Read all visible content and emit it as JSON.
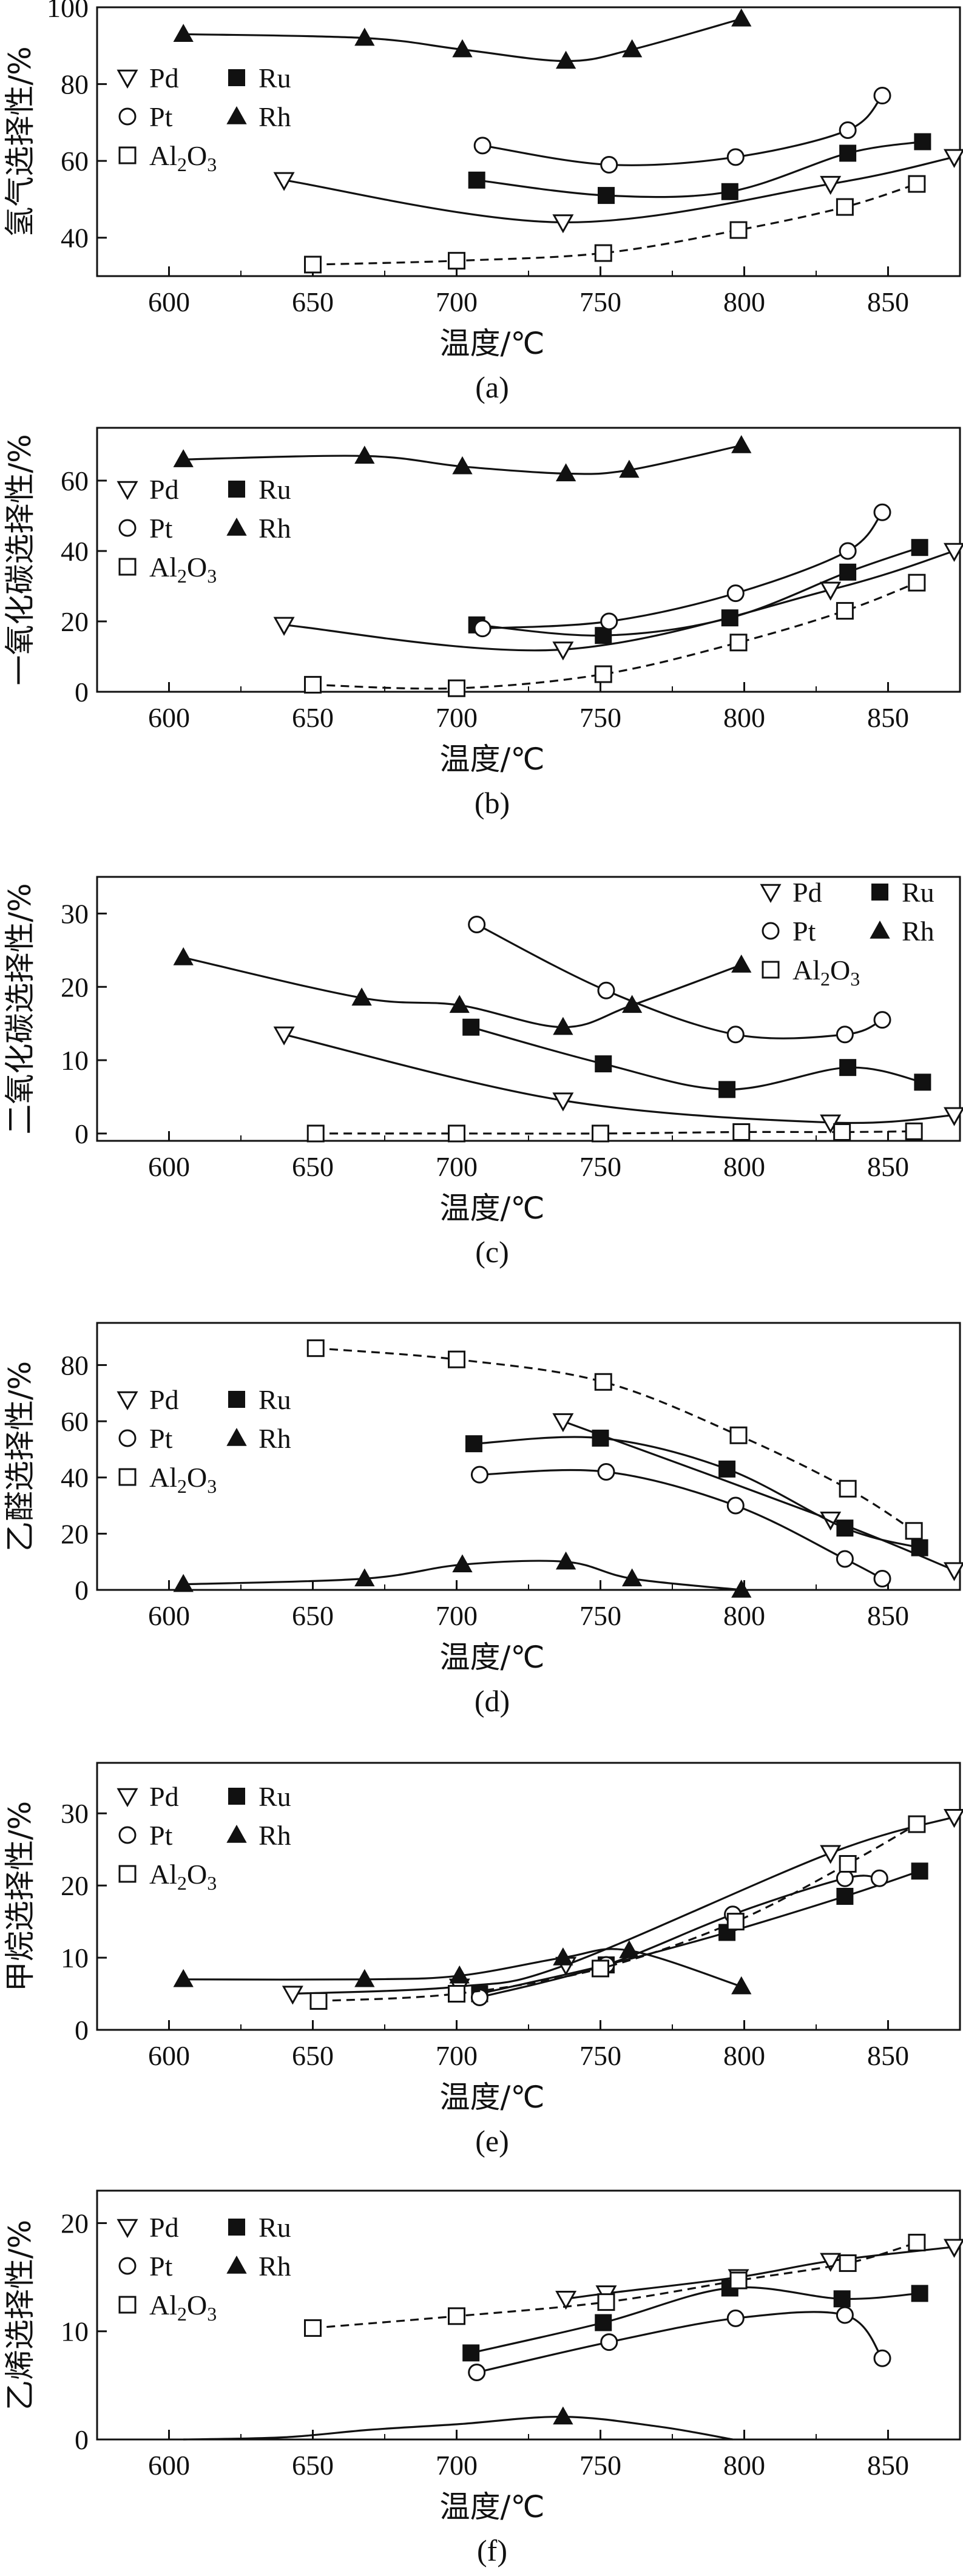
{
  "chart_data": [
    {
      "type": "line",
      "panel_label": "(a)",
      "xlabel": "温度/℃",
      "ylabel": "氢气选择性/%",
      "xlim": [
        575,
        875
      ],
      "ylim": [
        30,
        100
      ],
      "xticks": [
        600,
        650,
        700,
        750,
        800,
        850
      ],
      "yticks": [
        40,
        60,
        80,
        100
      ],
      "legend": {
        "position": "top-left",
        "columns": 2,
        "order": [
          "Pd",
          "Ru",
          "Pt",
          "Rh",
          "Al2O3"
        ]
      },
      "series": [
        {
          "name": "Pd",
          "display": "Pd",
          "marker": "triangle-down-open",
          "dashed": false,
          "x": [
            640,
            737,
            830,
            873
          ],
          "y": [
            55,
            44,
            54,
            61
          ]
        },
        {
          "name": "Ru",
          "display": "Ru",
          "marker": "square-filled",
          "dashed": false,
          "x": [
            707,
            752,
            795,
            836,
            862
          ],
          "y": [
            55,
            51,
            52,
            62,
            65
          ]
        },
        {
          "name": "Pt",
          "display": "Pt",
          "marker": "circle-open",
          "dashed": false,
          "x": [
            709,
            753,
            797,
            836,
            848
          ],
          "y": [
            64,
            59,
            61,
            68,
            77
          ]
        },
        {
          "name": "Rh",
          "display": "Rh",
          "marker": "triangle-up-filled",
          "dashed": false,
          "x": [
            605,
            668,
            702,
            738,
            761,
            799
          ],
          "y": [
            93,
            92,
            89,
            86,
            89,
            97
          ]
        },
        {
          "name": "Al2O3",
          "display": "Al",
          "display_sub": "2",
          "display_suffix": "O",
          "display_sub2": "3",
          "marker": "square-open",
          "dashed": true,
          "x": [
            650,
            700,
            751,
            798,
            835,
            860
          ],
          "y": [
            33,
            34,
            36,
            42,
            48,
            54
          ]
        }
      ]
    },
    {
      "type": "line",
      "panel_label": "(b)",
      "xlabel": "温度/℃",
      "ylabel": "一氧化碳选择性/%",
      "xlim": [
        575,
        875
      ],
      "ylim": [
        0,
        75
      ],
      "xticks": [
        600,
        650,
        700,
        750,
        800,
        850
      ],
      "yticks": [
        0,
        20,
        40,
        60
      ],
      "legend": {
        "position": "upper-left",
        "columns": 2,
        "order": [
          "Pd",
          "Ru",
          "Pt",
          "Rh",
          "Al2O3"
        ]
      },
      "series": [
        {
          "name": "Pd",
          "display": "Pd",
          "marker": "triangle-down-open",
          "dashed": false,
          "x": [
            640,
            737,
            830,
            873
          ],
          "y": [
            19,
            12,
            29,
            40
          ]
        },
        {
          "name": "Ru",
          "display": "Ru",
          "marker": "square-filled",
          "dashed": false,
          "x": [
            707,
            751,
            795,
            836,
            861
          ],
          "y": [
            19,
            16,
            21,
            34,
            41
          ]
        },
        {
          "name": "Pt",
          "display": "Pt",
          "marker": "circle-open",
          "dashed": false,
          "x": [
            709,
            753,
            797,
            836,
            848
          ],
          "y": [
            18,
            20,
            28,
            40,
            51
          ]
        },
        {
          "name": "Rh",
          "display": "Rh",
          "marker": "triangle-up-filled",
          "dashed": false,
          "x": [
            605,
            668,
            702,
            738,
            760,
            799
          ],
          "y": [
            66,
            67,
            64,
            62,
            63,
            70
          ]
        },
        {
          "name": "Al2O3",
          "display": "Al",
          "display_sub": "2",
          "display_suffix": "O",
          "display_sub2": "3",
          "marker": "square-open",
          "dashed": true,
          "x": [
            650,
            700,
            751,
            798,
            835,
            860
          ],
          "y": [
            2,
            1,
            5,
            14,
            23,
            31
          ]
        }
      ]
    },
    {
      "type": "line",
      "panel_label": "(c)",
      "xlabel": "温度/℃",
      "ylabel": "二氧化碳选择性/%",
      "xlim": [
        575,
        875
      ],
      "ylim": [
        -1,
        35
      ],
      "xticks": [
        600,
        650,
        700,
        750,
        800,
        850
      ],
      "yticks": [
        0,
        10,
        20,
        30
      ],
      "legend": {
        "position": "top-right",
        "columns": 2,
        "order": [
          "Pd",
          "Ru",
          "Pt",
          "Rh",
          "Al2O3"
        ]
      },
      "series": [
        {
          "name": "Pd",
          "display": "Pd",
          "marker": "triangle-down-open",
          "dashed": false,
          "x": [
            640,
            737,
            830,
            873
          ],
          "y": [
            13.5,
            4.5,
            1.5,
            2.5
          ]
        },
        {
          "name": "Ru",
          "display": "Ru",
          "marker": "square-filled",
          "dashed": false,
          "x": [
            705,
            751,
            794,
            836,
            862
          ],
          "y": [
            14.5,
            9.5,
            6,
            9,
            7
          ]
        },
        {
          "name": "Pt",
          "display": "Pt",
          "marker": "circle-open",
          "dashed": false,
          "x": [
            707,
            752,
            797,
            835,
            848
          ],
          "y": [
            28.5,
            19.5,
            13.5,
            13.5,
            15.5
          ]
        },
        {
          "name": "Rh",
          "display": "Rh",
          "marker": "triangle-up-filled",
          "dashed": false,
          "x": [
            605,
            667,
            701,
            737,
            761,
            799
          ],
          "y": [
            24,
            18.5,
            17.5,
            14.5,
            17.5,
            23
          ]
        },
        {
          "name": "Al2O3",
          "display": "Al",
          "display_sub": "2",
          "display_suffix": "O",
          "display_sub2": "3",
          "marker": "square-open",
          "dashed": true,
          "x": [
            651,
            700,
            750,
            799,
            834,
            859
          ],
          "y": [
            0,
            0,
            0,
            0.2,
            0.2,
            0.3
          ]
        }
      ]
    },
    {
      "type": "line",
      "panel_label": "(d)",
      "xlabel": "温度/℃",
      "ylabel": "乙醛选择性/%",
      "xlim": [
        575,
        875
      ],
      "ylim": [
        0,
        95
      ],
      "xticks": [
        600,
        650,
        700,
        750,
        800,
        850
      ],
      "yticks": [
        0,
        20,
        40,
        60,
        80
      ],
      "legend": {
        "position": "upper-left",
        "columns": 2,
        "order": [
          "Pd",
          "Ru",
          "Pt",
          "Rh",
          "Al2O3"
        ]
      },
      "series": [
        {
          "name": "Pd",
          "display": "Pd",
          "marker": "triangle-down-open",
          "dashed": false,
          "x": [
            737,
            830,
            873
          ],
          "y": [
            60,
            25,
            7
          ]
        },
        {
          "name": "Ru",
          "display": "Ru",
          "marker": "square-filled",
          "dashed": false,
          "x": [
            706,
            750,
            794,
            835,
            861
          ],
          "y": [
            52,
            54,
            43,
            22,
            15
          ]
        },
        {
          "name": "Pt",
          "display": "Pt",
          "marker": "circle-open",
          "dashed": false,
          "x": [
            708,
            752,
            797,
            835,
            848
          ],
          "y": [
            41,
            42,
            30,
            11,
            4
          ]
        },
        {
          "name": "Rh",
          "display": "Rh",
          "marker": "triangle-up-filled",
          "dashed": false,
          "x": [
            605,
            668,
            702,
            738,
            761,
            799
          ],
          "y": [
            2,
            4,
            9,
            10,
            4,
            0
          ]
        },
        {
          "name": "Al2O3",
          "display": "Al",
          "display_sub": "2",
          "display_suffix": "O",
          "display_sub2": "3",
          "marker": "square-open",
          "dashed": true,
          "x": [
            651,
            700,
            751,
            798,
            836,
            859
          ],
          "y": [
            86,
            82,
            74,
            55,
            36,
            21
          ]
        }
      ]
    },
    {
      "type": "line",
      "panel_label": "(e)",
      "xlabel": "温度/℃",
      "ylabel": "甲烷选择性/%",
      "xlim": [
        575,
        875
      ],
      "ylim": [
        0,
        37
      ],
      "xticks": [
        600,
        650,
        700,
        750,
        800,
        850
      ],
      "yticks": [
        0,
        10,
        20,
        30
      ],
      "legend": {
        "position": "top-left",
        "columns": 2,
        "order": [
          "Pd",
          "Ru",
          "Pt",
          "Rh",
          "Al2O3"
        ]
      },
      "series": [
        {
          "name": "Pd",
          "display": "Pd",
          "marker": "triangle-down-open",
          "dashed": false,
          "x": [
            643,
            701,
            738,
            830,
            873
          ],
          "y": [
            5,
            6,
            9,
            24.5,
            29.5
          ]
        },
        {
          "name": "Ru",
          "display": "Ru",
          "marker": "square-filled",
          "dashed": false,
          "x": [
            708,
            752,
            794,
            835,
            861
          ],
          "y": [
            5,
            9,
            13.5,
            18.5,
            22
          ]
        },
        {
          "name": "Pt",
          "display": "Pt",
          "marker": "circle-open",
          "dashed": false,
          "x": [
            708,
            752,
            796,
            835,
            847
          ],
          "y": [
            4.5,
            9,
            16,
            21,
            21
          ]
        },
        {
          "name": "Rh",
          "display": "Rh",
          "marker": "triangle-up-filled",
          "dashed": false,
          "x": [
            605,
            668,
            701,
            737,
            760,
            799
          ],
          "y": [
            7,
            7,
            7.5,
            10,
            11,
            6
          ]
        },
        {
          "name": "Al2O3",
          "display": "Al",
          "display_sub": "2",
          "display_suffix": "O",
          "display_sub2": "3",
          "marker": "square-open",
          "dashed": true,
          "x": [
            652,
            700,
            750,
            797,
            836,
            860
          ],
          "y": [
            4,
            5,
            8.5,
            15,
            23,
            28.5
          ]
        }
      ]
    },
    {
      "type": "line",
      "panel_label": "(f)",
      "xlabel": "温度/℃",
      "ylabel": "乙烯选择性/%",
      "xlim": [
        575,
        875
      ],
      "ylim": [
        0,
        23
      ],
      "xticks": [
        600,
        650,
        700,
        750,
        800,
        850
      ],
      "yticks": [
        0,
        10,
        20
      ],
      "legend": {
        "position": "top-left",
        "columns": 2,
        "order": [
          "Pd",
          "Ru",
          "Pt",
          "Rh",
          "Al2O3"
        ]
      },
      "series": [
        {
          "name": "Pd",
          "display": "Pd",
          "marker": "triangle-down-open",
          "dashed": false,
          "x": [
            738,
            752,
            798,
            830,
            873
          ],
          "y": [
            13,
            13.5,
            15,
            16.5,
            17.8
          ]
        },
        {
          "name": "Ru",
          "display": "Ru",
          "marker": "square-filled",
          "dashed": false,
          "x": [
            705,
            751,
            795,
            834,
            861
          ],
          "y": [
            8,
            10.8,
            14,
            13,
            13.5
          ]
        },
        {
          "name": "Pt",
          "display": "Pt",
          "marker": "circle-open",
          "dashed": false,
          "x": [
            707,
            753,
            797,
            835,
            848
          ],
          "y": [
            6.2,
            9,
            11.2,
            11.5,
            7.5
          ]
        },
        {
          "name": "Rh",
          "display": "Rh",
          "marker": "triangle-up-filled",
          "dashed": false,
          "x": [
            605,
            640,
            670,
            700,
            737,
            770,
            796
          ],
          "y": [
            0,
            0.2,
            0.9,
            1.4,
            2.1,
            1.2,
            0
          ],
          "marker_indices": [
            4
          ]
        },
        {
          "name": "Al2O3",
          "display": "Al",
          "display_sub": "2",
          "display_suffix": "O",
          "display_sub2": "3",
          "marker": "square-open",
          "dashed": true,
          "x": [
            650,
            700,
            752,
            798,
            836,
            860
          ],
          "y": [
            10.3,
            11.4,
            12.7,
            14.7,
            16.3,
            18.2
          ]
        }
      ]
    }
  ]
}
